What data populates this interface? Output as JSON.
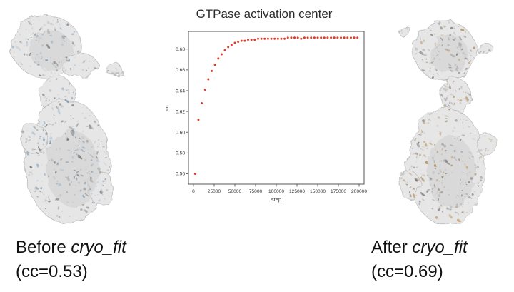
{
  "captions": {
    "left": {
      "prefix": "Before ",
      "italic": "cryo_fit",
      "line2": "(cc=0.53)"
    },
    "right": {
      "prefix": "After ",
      "italic": "cryo_fit",
      "line2": "(cc=0.69)"
    }
  },
  "colors": {
    "marker": "#e03a2b",
    "axis": "#444444",
    "map_fill": "#e6e6e6",
    "map_stroke": "#9a9a9a"
  },
  "chart_data": {
    "type": "scatter",
    "title": "GTPase activation center",
    "xlabel": "step",
    "ylabel": "cc",
    "xlim": [
      -6000,
      206000
    ],
    "ylim": [
      0.55,
      0.697
    ],
    "xticks": [
      0,
      25000,
      50000,
      75000,
      100000,
      125000,
      150000,
      175000,
      200000
    ],
    "yticks": [
      0.56,
      0.58,
      0.6,
      0.62,
      0.64,
      0.66,
      0.68
    ],
    "grid": false,
    "legend": "none",
    "marker_color": "#e03a2b",
    "points": [
      [
        2000,
        0.56
      ],
      [
        6000,
        0.612
      ],
      [
        10000,
        0.628
      ],
      [
        14000,
        0.641
      ],
      [
        18000,
        0.651
      ],
      [
        22000,
        0.659
      ],
      [
        26000,
        0.665
      ],
      [
        30000,
        0.671
      ],
      [
        34000,
        0.675
      ],
      [
        38000,
        0.679
      ],
      [
        42000,
        0.682
      ],
      [
        46000,
        0.684
      ],
      [
        50000,
        0.686
      ],
      [
        54000,
        0.687
      ],
      [
        58000,
        0.688
      ],
      [
        62000,
        0.688
      ],
      [
        66000,
        0.689
      ],
      [
        70000,
        0.689
      ],
      [
        74000,
        0.689
      ],
      [
        78000,
        0.69
      ],
      [
        82000,
        0.69
      ],
      [
        86000,
        0.69
      ],
      [
        90000,
        0.69
      ],
      [
        94000,
        0.69
      ],
      [
        98000,
        0.69
      ],
      [
        102000,
        0.69
      ],
      [
        106000,
        0.69
      ],
      [
        110000,
        0.69
      ],
      [
        114000,
        0.691
      ],
      [
        118000,
        0.691
      ],
      [
        122000,
        0.691
      ],
      [
        126000,
        0.691
      ],
      [
        130000,
        0.69
      ],
      [
        134000,
        0.691
      ],
      [
        138000,
        0.691
      ],
      [
        142000,
        0.691
      ],
      [
        146000,
        0.691
      ],
      [
        150000,
        0.691
      ],
      [
        154000,
        0.691
      ],
      [
        158000,
        0.691
      ],
      [
        162000,
        0.691
      ],
      [
        166000,
        0.691
      ],
      [
        170000,
        0.691
      ],
      [
        174000,
        0.691
      ],
      [
        178000,
        0.691
      ],
      [
        182000,
        0.691
      ],
      [
        186000,
        0.691
      ],
      [
        190000,
        0.691
      ],
      [
        194000,
        0.691
      ],
      [
        198000,
        0.691
      ]
    ]
  }
}
